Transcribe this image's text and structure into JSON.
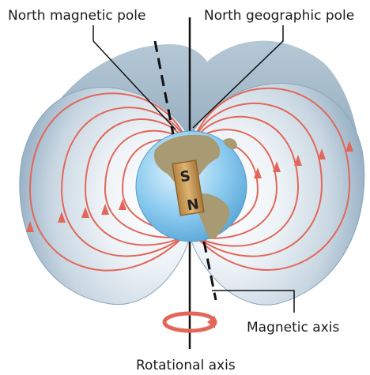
{
  "labels": {
    "north_magnetic_pole": "North magnetic pole",
    "north_geographic_pole": "North geographic pole",
    "magnetic_axis": "Magnetic axis",
    "rotational_axis": "Rotational axis"
  },
  "magnet": {
    "south_letter": "S",
    "north_letter": "N"
  },
  "colors": {
    "field_line": "#e2675a",
    "torus_edge": "#7e9db4",
    "ocean": "#6fb7e3",
    "land": "#a89a72",
    "magnet": "#c89a55"
  }
}
